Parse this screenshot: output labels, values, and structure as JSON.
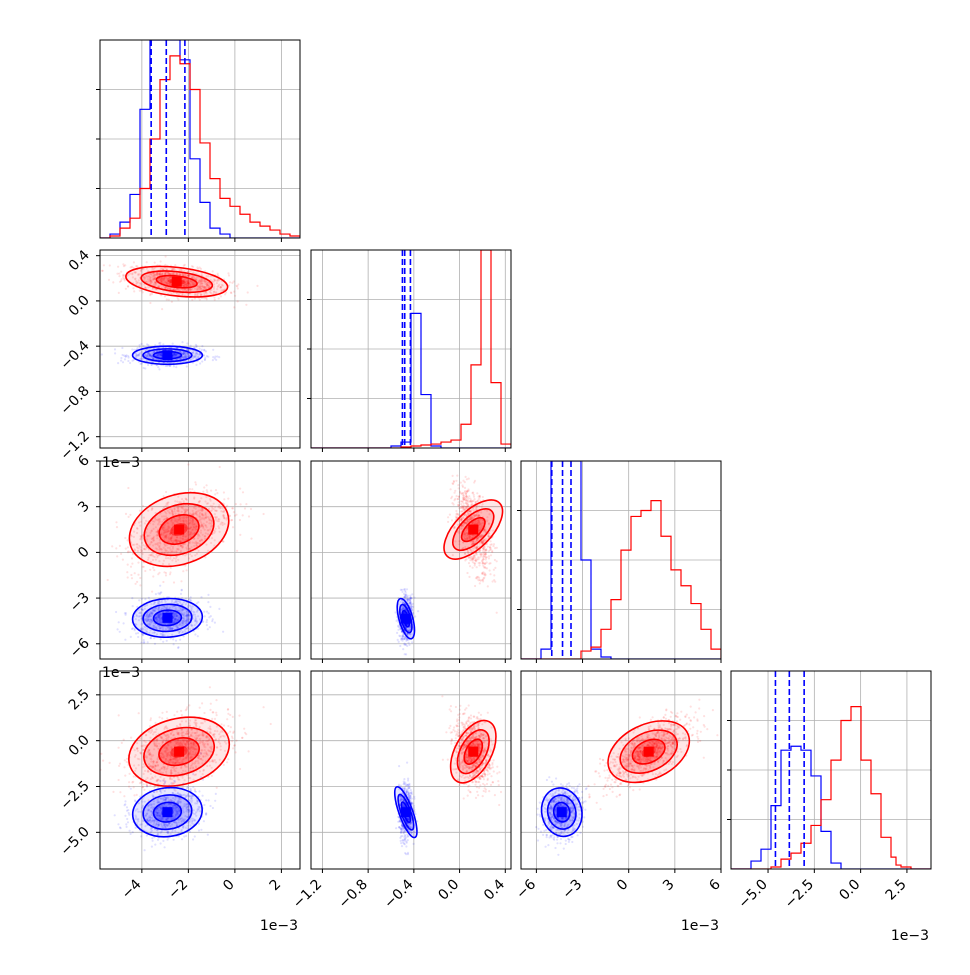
{
  "chart_data": {
    "type": "corner",
    "colors": {
      "series_a": "#ff0000",
      "series_b": "#0000ff",
      "grid": "#b0b0b0"
    },
    "series": [
      {
        "name": "",
        "color": "#0000ff"
      },
      {
        "name": "",
        "color": "#ff0000"
      }
    ],
    "grid": true,
    "parameters": [
      {
        "range": [
          -5.8,
          2.8
        ],
        "ticks": [
          -4,
          -2,
          0,
          2
        ],
        "tick_labels": [
          "−4",
          "−2",
          "0",
          "2"
        ],
        "offset_label": "1e−3"
      },
      {
        "range": [
          -1.3,
          0.45
        ],
        "ticks": [
          -1.2,
          -0.8,
          -0.4,
          0.0,
          0.4
        ],
        "tick_labels": [
          "−1.2",
          "−0.8",
          "−0.4",
          "0.0",
          "0.4"
        ],
        "offset_label": ""
      },
      {
        "range": [
          -7.0,
          6.0
        ],
        "ticks": [
          -6,
          -3,
          0,
          3,
          6
        ],
        "tick_labels": [
          "−6",
          "−3",
          "0",
          "3",
          "6"
        ],
        "offset_label": "1e−3"
      },
      {
        "range": [
          -7.0,
          3.8
        ],
        "ticks": [
          -5.0,
          -2.5,
          0.0,
          2.5
        ],
        "tick_labels": [
          "−5.0",
          "−2.5",
          "0.0",
          "2.5"
        ],
        "offset_label": "1e−3"
      }
    ],
    "summary_quantiles": {
      "series_b": [
        [
          -3.6,
          -2.95,
          -2.15
        ],
        [
          -0.5,
          -0.48,
          -0.43
        ],
        [
          -5.0,
          -4.3,
          -3.75
        ],
        [
          -4.6,
          -3.85,
          -3.05
        ]
      ]
    },
    "histograms": [
      {
        "bin_edges": [
          -5.8,
          -5.37,
          -4.94,
          -4.51,
          -4.08,
          -3.65,
          -3.22,
          -2.79,
          -2.36,
          -1.93,
          -1.5,
          -1.07,
          -0.64,
          -0.21,
          0.22,
          0.65,
          1.08,
          1.51,
          1.94,
          2.37,
          2.8
        ],
        "series_b": [
          0,
          0.02,
          0.08,
          0.22,
          0.65,
          1.0,
          1.0,
          1.0,
          0.9,
          0.4,
          0.18,
          0.05,
          0.02,
          0,
          0,
          0,
          0,
          0,
          0,
          0
        ],
        "series_a": [
          0,
          0.01,
          0.05,
          0.1,
          0.25,
          0.5,
          0.8,
          0.92,
          0.88,
          0.75,
          0.48,
          0.3,
          0.2,
          0.16,
          0.12,
          0.08,
          0.06,
          0.04,
          0.02,
          0.01
        ]
      },
      {
        "bin_edges": [
          -1.3,
          -1.2125,
          -1.125,
          -1.0375,
          -0.95,
          -0.8625,
          -0.775,
          -0.6875,
          -0.6,
          -0.5125,
          -0.425,
          -0.3375,
          -0.25,
          -0.1625,
          -0.075,
          0.0125,
          0.1,
          0.1875,
          0.275,
          0.3625,
          0.45
        ],
        "series_b": [
          0,
          0,
          0,
          0,
          0,
          0,
          0,
          0,
          0.01,
          0.03,
          0.68,
          0.27,
          0.01,
          0,
          0,
          0,
          0,
          0,
          0,
          0
        ],
        "series_a": [
          0,
          0,
          0,
          0,
          0,
          0,
          0,
          0,
          0,
          0.005,
          0.01,
          0.015,
          0.02,
          0.03,
          0.04,
          0.12,
          0.42,
          1.0,
          0.33,
          0.02
        ]
      },
      {
        "bin_edges": [
          -7.0,
          -6.35,
          -5.7,
          -5.05,
          -4.4,
          -3.75,
          -3.1,
          -2.45,
          -1.8,
          -1.15,
          -0.5,
          0.15,
          0.8,
          1.45,
          2.1,
          2.75,
          3.4,
          4.05,
          4.7,
          5.35,
          6.0
        ],
        "series_b": [
          0,
          0,
          0.05,
          1.0,
          1.0,
          1.0,
          0.5,
          0.05,
          0.01,
          0,
          0,
          0,
          0,
          0,
          0,
          0,
          0,
          0,
          0,
          0
        ],
        "series_a": [
          0,
          0,
          0,
          0,
          0,
          0,
          0.04,
          0.06,
          0.15,
          0.3,
          0.55,
          0.72,
          0.75,
          0.8,
          0.62,
          0.45,
          0.37,
          0.28,
          0.15,
          0.05
        ]
      },
      {
        "bin_edges": [
          -7.0,
          -6.46,
          -5.92,
          -5.38,
          -4.84,
          -4.3,
          -3.76,
          -3.22,
          -2.68,
          -2.14,
          -1.6,
          -1.06,
          -0.52,
          0.02,
          0.56,
          1.1,
          1.64,
          1.91,
          2.18,
          2.72,
          3.8
        ],
        "series_b": [
          0,
          0,
          0.04,
          0.1,
          0.32,
          0.6,
          0.62,
          0.6,
          0.47,
          0.19,
          0.03,
          0,
          0,
          0,
          0,
          0,
          0,
          0,
          0,
          0
        ],
        "series_a": [
          0,
          0,
          0,
          0,
          0.01,
          0.05,
          0.08,
          0.13,
          0.22,
          0.35,
          0.55,
          0.75,
          0.82,
          0.55,
          0.38,
          0.16,
          0.06,
          0.02,
          0.01,
          0
        ]
      }
    ],
    "scatter_blobs": {
      "series_b": [
        {
          "x": 0,
          "y": 1,
          "center": [
            -2.9,
            -0.48
          ],
          "spread": [
            0.75,
            0.04
          ],
          "corr": 0.0
        },
        {
          "x": 0,
          "y": 2,
          "center": [
            -2.9,
            -4.3
          ],
          "spread": [
            0.75,
            0.65
          ],
          "corr": 0.1
        },
        {
          "x": 0,
          "y": 3,
          "center": [
            -2.9,
            -3.9
          ],
          "spread": [
            0.75,
            0.7
          ],
          "corr": 0.2
        },
        {
          "x": 1,
          "y": 2,
          "center": [
            -0.47,
            -4.35
          ],
          "spread": [
            0.03,
            0.7
          ],
          "corr": 0.1
        },
        {
          "x": 1,
          "y": 3,
          "center": [
            -0.47,
            -3.9
          ],
          "spread": [
            0.03,
            0.75
          ],
          "corr": 0.1
        },
        {
          "x": 2,
          "y": 3,
          "center": [
            -4.35,
            -3.9
          ],
          "spread": [
            0.65,
            0.7
          ],
          "corr": 0.2
        }
      ],
      "series_a": [
        {
          "x": 0,
          "y": 1,
          "center": [
            -2.5,
            0.17
          ],
          "spread": [
            1.1,
            0.07
          ],
          "corr": -0.4
        },
        {
          "x": 0,
          "y": 2,
          "center": [
            -2.4,
            1.5
          ],
          "spread": [
            1.1,
            1.3
          ],
          "corr": 0.5
        },
        {
          "x": 0,
          "y": 3,
          "center": [
            -2.4,
            -0.6
          ],
          "spread": [
            1.1,
            1.0
          ],
          "corr": 0.4
        },
        {
          "x": 1,
          "y": 2,
          "center": [
            0.12,
            1.5
          ],
          "spread": [
            0.08,
            1.4
          ],
          "corr": -0.5
        },
        {
          "x": 1,
          "y": 3,
          "center": [
            0.12,
            -0.6
          ],
          "spread": [
            0.08,
            1.0
          ],
          "corr": -0.3
        },
        {
          "x": 2,
          "y": 3,
          "center": [
            1.3,
            -0.6
          ],
          "spread": [
            1.4,
            0.9
          ],
          "corr": 0.7
        }
      ]
    }
  }
}
